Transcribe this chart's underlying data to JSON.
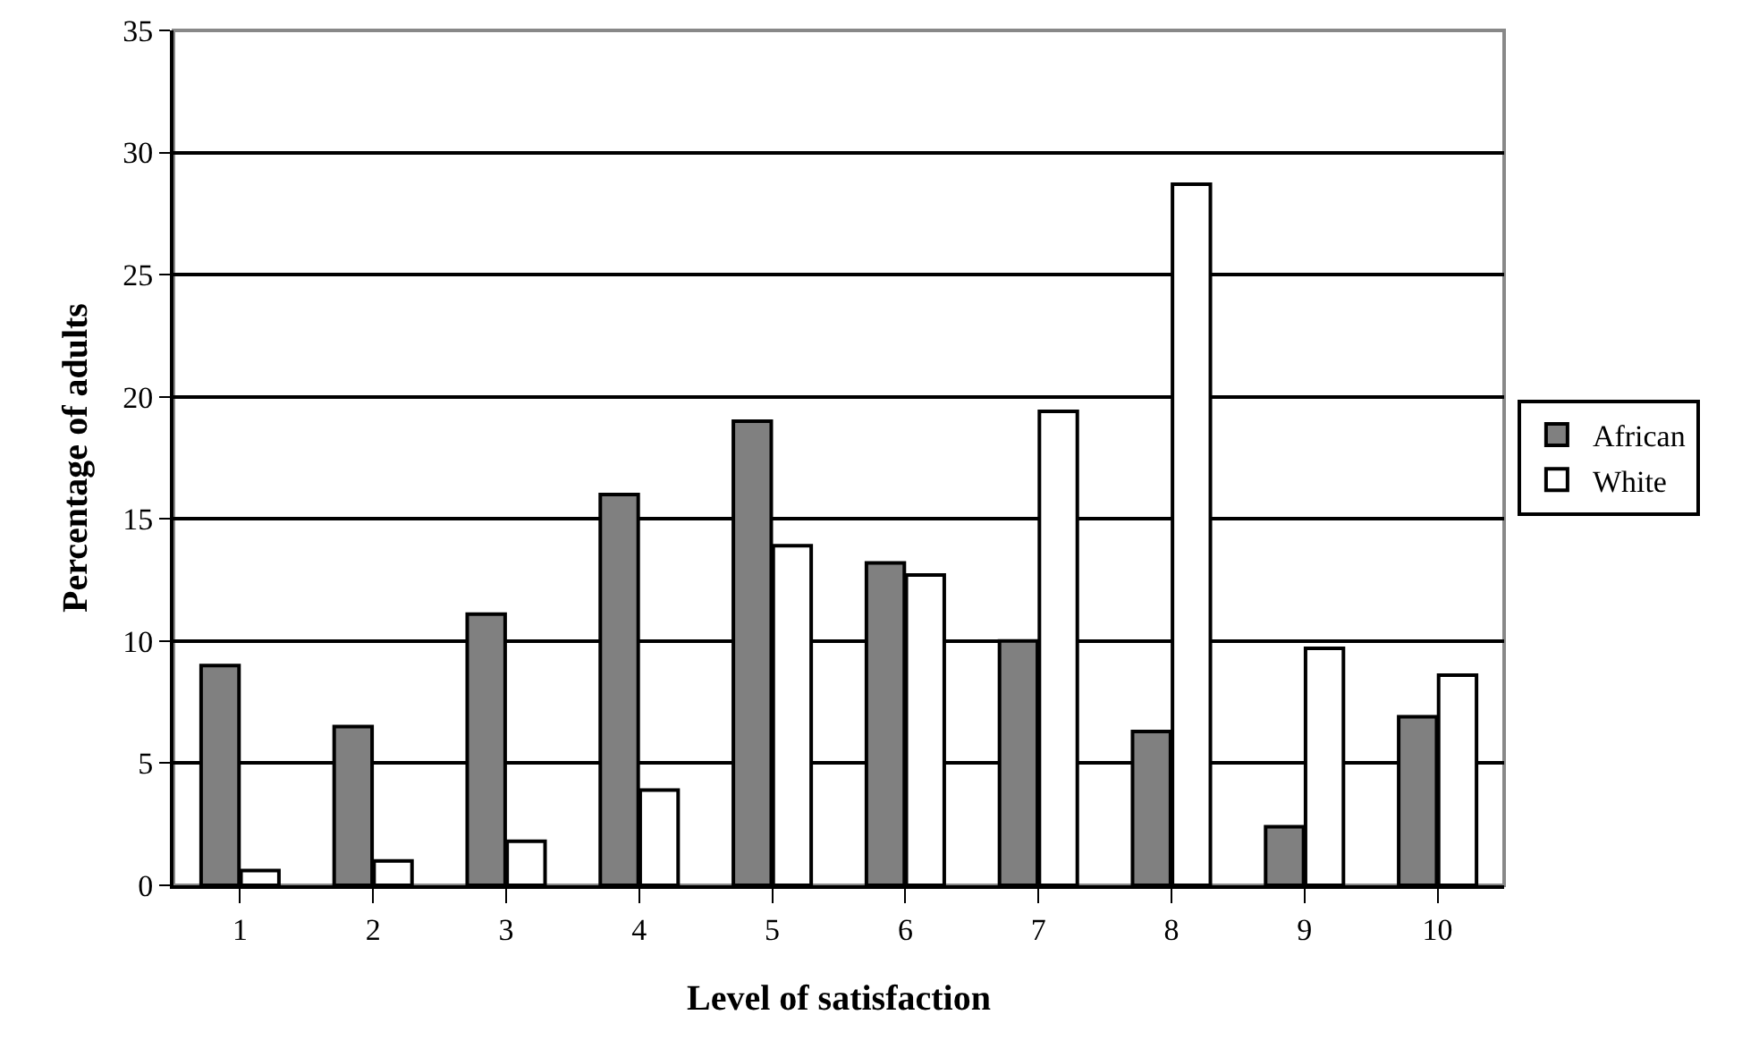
{
  "chart_data": {
    "type": "bar",
    "xlabel": "Level of satisfaction",
    "ylabel": "Percentage of adults",
    "categories": [
      "1",
      "2",
      "3",
      "4",
      "5",
      "6",
      "7",
      "8",
      "9",
      "10"
    ],
    "series": [
      {
        "name": "African",
        "color": "#808080",
        "values": [
          9,
          6.5,
          11.1,
          16,
          19,
          13.2,
          10,
          6.3,
          2.4,
          6.9
        ]
      },
      {
        "name": "White",
        "color": "#ffffff",
        "values": [
          0.6,
          1,
          1.8,
          3.9,
          13.9,
          12.7,
          19.4,
          28.7,
          9.7,
          8.6
        ]
      }
    ],
    "ylim": [
      0,
      35
    ],
    "yticks": [
      0,
      5,
      10,
      15,
      20,
      25,
      30,
      35
    ],
    "grid": "y",
    "legend": "right"
  }
}
